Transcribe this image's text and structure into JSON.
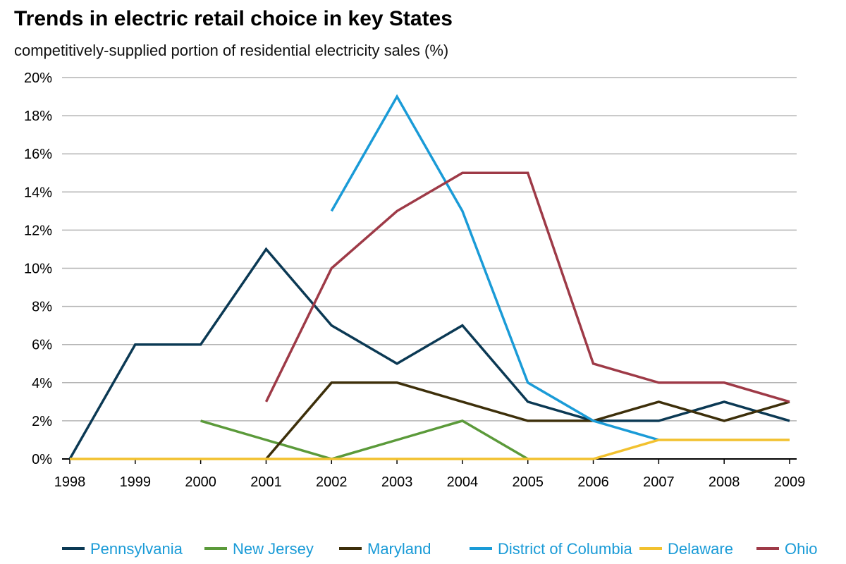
{
  "chart_data": {
    "type": "line",
    "title": "Trends in electric retail choice in key States",
    "subtitle": "competitively-supplied portion of residential electricity sales (%)",
    "xlabel": "",
    "ylabel": "",
    "x": [
      "1998",
      "1999",
      "2000",
      "2001",
      "2002",
      "2003",
      "2004",
      "2005",
      "2006",
      "2007",
      "2008",
      "2009"
    ],
    "ylim": [
      0,
      20
    ],
    "y_ticks": [
      0,
      2,
      4,
      6,
      8,
      10,
      12,
      14,
      16,
      18,
      20
    ],
    "y_tick_labels": [
      "0%",
      "2%",
      "4%",
      "6%",
      "8%",
      "10%",
      "12%",
      "14%",
      "16%",
      "18%",
      "20%"
    ],
    "grid": true,
    "legend_position": "bottom",
    "legend_text_color": "#1a9bd7",
    "series": [
      {
        "name": "Pennsylvania",
        "color": "#0b3954",
        "values": [
          0,
          6,
          6,
          11,
          7,
          5,
          7,
          3,
          2,
          2,
          3,
          2
        ]
      },
      {
        "name": "New Jersey",
        "color": "#5b9a3a",
        "values": [
          null,
          null,
          2,
          1,
          0,
          1,
          2,
          0,
          null,
          null,
          null,
          null
        ]
      },
      {
        "name": "Maryland",
        "color": "#3d2f0a",
        "values": [
          null,
          null,
          null,
          0,
          4,
          4,
          3,
          2,
          2,
          3,
          2,
          3
        ]
      },
      {
        "name": "District of Columbia",
        "color": "#1a9bd7",
        "values": [
          null,
          null,
          null,
          null,
          13,
          19,
          13,
          4,
          2,
          1,
          null,
          null
        ]
      },
      {
        "name": "Delaware",
        "color": "#f2c12e",
        "values": [
          0,
          0,
          0,
          0,
          0,
          0,
          0,
          0,
          0,
          1,
          1,
          1
        ]
      },
      {
        "name": "Ohio",
        "color": "#9e3a47",
        "values": [
          null,
          null,
          null,
          3,
          10,
          13,
          15,
          15,
          5,
          4,
          4,
          3
        ]
      }
    ]
  }
}
